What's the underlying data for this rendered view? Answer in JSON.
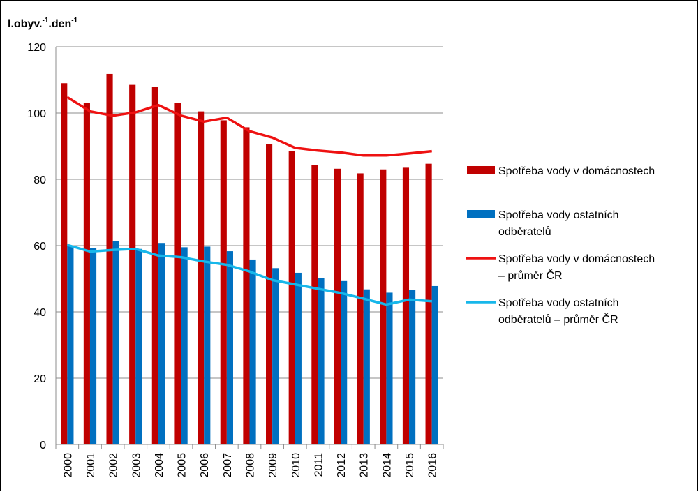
{
  "chart_data": {
    "type": "bar",
    "ylabel_main": "l.obyv.",
    "ylabel_sup1": "-1",
    "ylabel_mid": ".den",
    "ylabel_sup2": "-1",
    "ylim": [
      0,
      120
    ],
    "yticks": [
      "0",
      "20",
      "40",
      "60",
      "80",
      "100",
      "120"
    ],
    "categories": [
      "2000",
      "2001",
      "2002",
      "2003",
      "2004",
      "2005",
      "2006",
      "2007",
      "2008",
      "2009",
      "2010",
      "2011",
      "2012",
      "2013",
      "2014",
      "2015",
      "2016"
    ],
    "grid": true,
    "legend_position": "right",
    "series": [
      {
        "kind": "bar",
        "color": "#c00000",
        "legend": [
          "Spotřeba vody v domácnostech"
        ],
        "values": [
          109,
          103,
          111.8,
          108.5,
          108,
          103,
          100.5,
          97.8,
          95.7,
          90.6,
          88.5,
          84.3,
          83.2,
          81.8,
          83,
          83.5,
          84.7
        ]
      },
      {
        "kind": "bar",
        "color": "#0070c0",
        "legend": [
          "Spotřeba vody ostatních",
          "odběratelů"
        ],
        "values": [
          60,
          59.3,
          61.3,
          59,
          60.8,
          59.5,
          59.7,
          58.3,
          55.8,
          53.2,
          51.8,
          50.3,
          49.3,
          46.8,
          45.8,
          46.6,
          47.8
        ]
      },
      {
        "kind": "line",
        "color": "#ee1111",
        "legend": [
          "Spotřeba vody v domácnostech",
          "– průměr ČR"
        ],
        "values": [
          104.8,
          100.5,
          99.2,
          100.2,
          102.4,
          99.2,
          97.4,
          98.6,
          94.5,
          92.6,
          89.5,
          88.7,
          88.1,
          87.2,
          87.2,
          87.8,
          88.5
        ]
      },
      {
        "kind": "line",
        "color": "#17b7ea",
        "legend": [
          "Spotřeba vody ostatních",
          "odběratelů – průměr ČR"
        ],
        "values": [
          60.2,
          58.2,
          58.7,
          59,
          57,
          56.5,
          55.2,
          54.2,
          52.2,
          49.6,
          48.3,
          47,
          45.7,
          44,
          42.2,
          43.7,
          43.2
        ]
      }
    ]
  }
}
